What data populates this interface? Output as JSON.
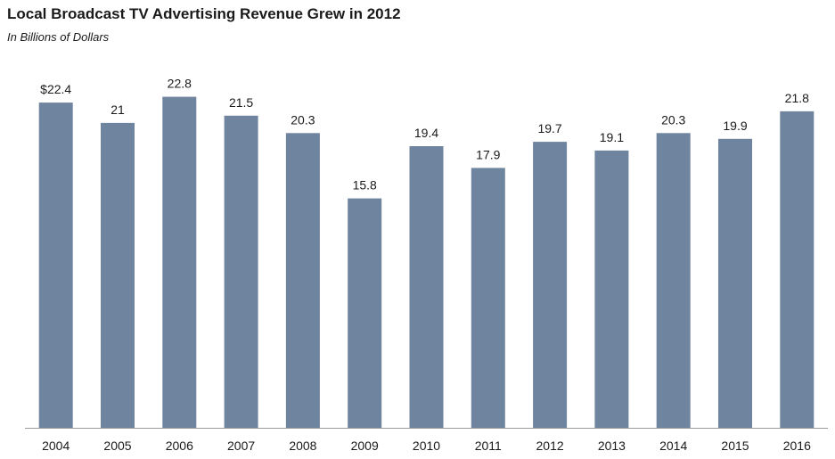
{
  "chart_data": {
    "type": "bar",
    "title": "Local Broadcast TV Advertising Revenue  Grew in 2012",
    "subtitle": "In Billions  of Dollars",
    "xlabel": "",
    "ylabel": "",
    "categories": [
      "2004",
      "2005",
      "2006",
      "2007",
      "2008",
      "2009",
      "2010",
      "2011",
      "2012",
      "2013",
      "2014",
      "2015",
      "2016"
    ],
    "values": [
      22.4,
      21,
      22.8,
      21.5,
      20.3,
      15.8,
      19.4,
      17.9,
      19.7,
      19.1,
      20.3,
      19.9,
      21.8
    ],
    "data_labels": [
      "$22.4",
      "21",
      "22.8",
      "21.5",
      "20.3",
      "15.8",
      "19.4",
      "17.9",
      "19.7",
      "19.1",
      "20.3",
      "19.9",
      "21.8"
    ],
    "ylim": [
      0,
      25
    ],
    "grid": false,
    "legend": "none",
    "colors": {
      "bar": "#6f849e",
      "text": "#1a1a1a",
      "axis": "#9a9a9a"
    }
  }
}
